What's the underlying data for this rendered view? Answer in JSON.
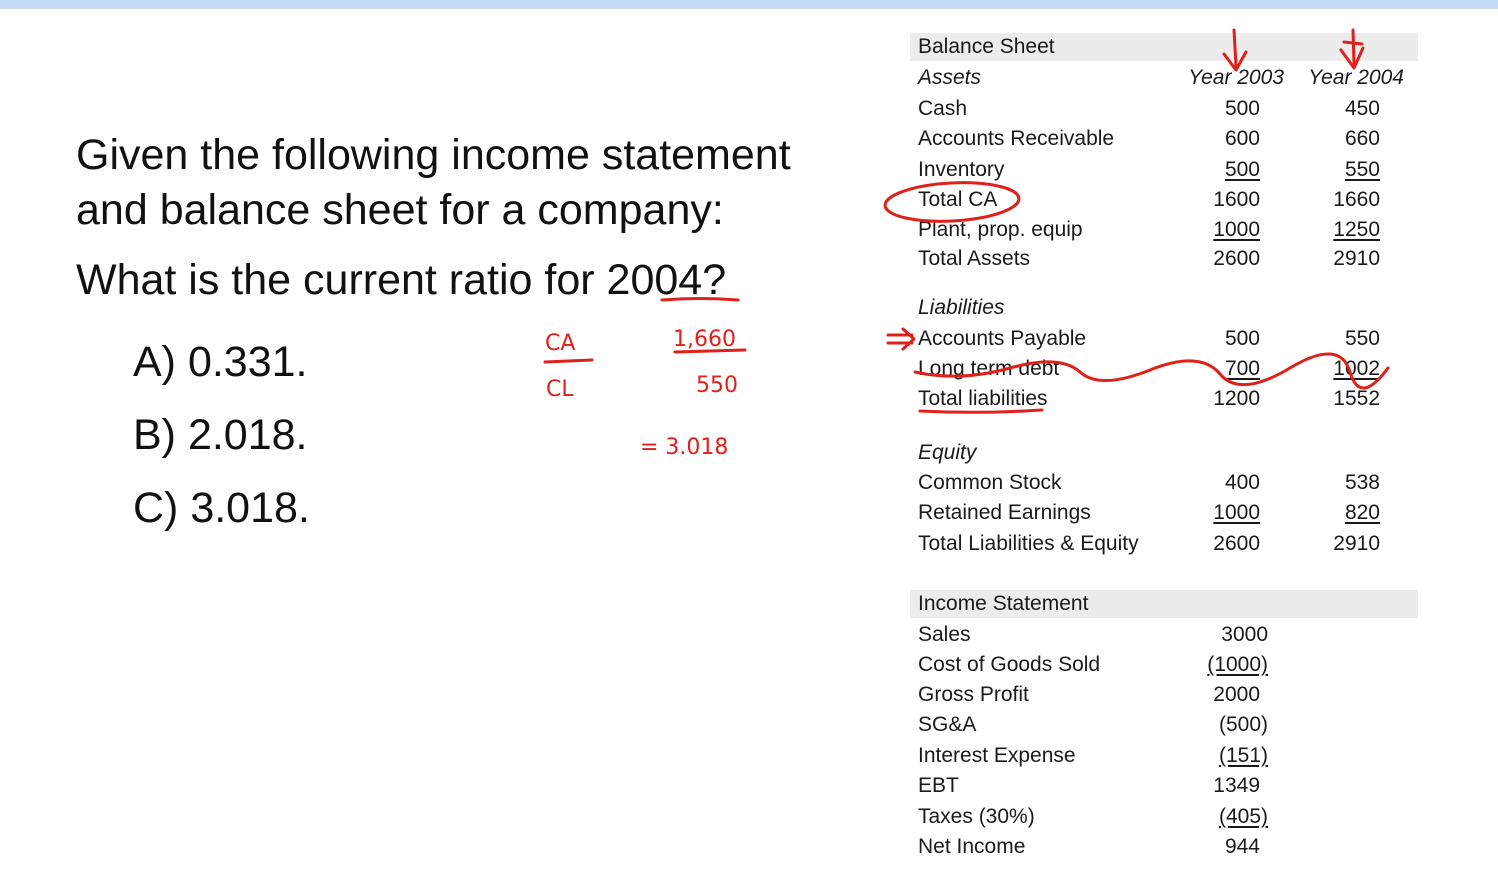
{
  "question": {
    "line1": "Given the following income statement",
    "line2": "and balance sheet for a company:",
    "line3": "What is the current ratio for 2004?"
  },
  "options": [
    {
      "label": "A) 0.331."
    },
    {
      "label": "B) 2.018."
    },
    {
      "label": "C) 3.018."
    }
  ],
  "annotations": {
    "ca": "CA",
    "cl": "CL",
    "numerator": "1,660",
    "denominator": "550",
    "result": "= 3.018",
    "ink_color": "#e0201a"
  },
  "balance_sheet": {
    "title": "Balance Sheet",
    "assets_label": "Assets",
    "col1": "Year 2003",
    "col2": "Year 2004",
    "assets": [
      {
        "label": "Cash",
        "y2003": "500",
        "y2004": "450"
      },
      {
        "label": "Accounts Receivable",
        "y2003": "600",
        "y2004": "660"
      },
      {
        "label": "Inventory",
        "y2003": "500",
        "y2004": "550"
      },
      {
        "label": "Total CA",
        "y2003": "1600",
        "y2004": "1660"
      },
      {
        "label": "Plant, prop. equip",
        "y2003": "1000",
        "y2004": "1250"
      },
      {
        "label": "Total Assets",
        "y2003": "2600",
        "y2004": "2910"
      }
    ],
    "liabilities_label": "Liabilities",
    "liabilities": [
      {
        "label": "Accounts Payable",
        "y2003": "500",
        "y2004": "550"
      },
      {
        "label": "Long term debt",
        "y2003": "700",
        "y2004": "1002"
      },
      {
        "label": "Total liabilities",
        "y2003": "1200",
        "y2004": "1552"
      }
    ],
    "equity_label": "Equity",
    "equity": [
      {
        "label": "Common Stock",
        "y2003": "400",
        "y2004": "538"
      },
      {
        "label": "Retained Earnings",
        "y2003": "1000",
        "y2004": "820"
      },
      {
        "label": "Total Liabilities & Equity",
        "y2003": "2600",
        "y2004": "2910"
      }
    ]
  },
  "income_statement": {
    "title": "Income Statement",
    "rows": [
      {
        "label": "Sales",
        "value": "3000"
      },
      {
        "label": "Cost of Goods Sold",
        "value": "(1000)"
      },
      {
        "label": "Gross Profit",
        "value": "2000"
      },
      {
        "label": "SG&A",
        "value": "(500)"
      },
      {
        "label": "Interest Expense",
        "value": "(151)"
      },
      {
        "label": "EBT",
        "value": "1349"
      },
      {
        "label": "Taxes (30%)",
        "value": "(405)"
      },
      {
        "label": "Net Income",
        "value": "944"
      }
    ]
  }
}
